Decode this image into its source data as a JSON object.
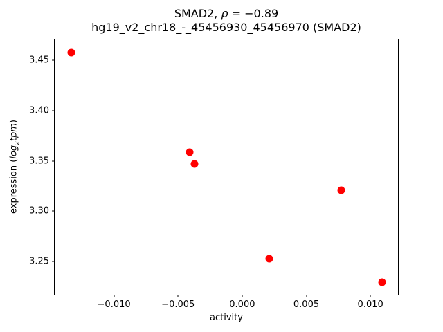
{
  "figure": {
    "title_line1": {
      "prefix": "SMAD2, ",
      "rho": "ρ",
      "rest": " = −0.89"
    },
    "title_line2": "hg19_v2_chr18_-_45456930_45456970 (SMAD2)",
    "xlabel": "activity",
    "ylabel": {
      "prefix": "expression (",
      "italic_main": "log",
      "italic_sub": "2",
      "italic_rest": "tpm",
      "suffix": ")"
    }
  },
  "chart_data": {
    "type": "scatter",
    "title": "SMAD2, ρ = −0.89",
    "subtitle": "hg19_v2_chr18_-_45456930_45456970 (SMAD2)",
    "xlabel": "activity",
    "ylabel": "expression (log2 tpm)",
    "marker_color": "#ff0000",
    "marker_size_px": 11,
    "grid": false,
    "legend": null,
    "xlim": [
      -0.01462,
      0.01215
    ],
    "ylim": [
      3.2169,
      3.471
    ],
    "xticks": [
      -0.01,
      -0.005,
      0.0,
      0.005,
      0.01
    ],
    "xtick_labels": [
      "−0.010",
      "−0.005",
      "0.000",
      "0.005",
      "0.010"
    ],
    "yticks": [
      3.25,
      3.3,
      3.35,
      3.4,
      3.45
    ],
    "ytick_labels": [
      "3.25",
      "3.30",
      "3.35",
      "3.40",
      "3.45"
    ],
    "points": [
      {
        "x": -0.0133,
        "y": 3.458
      },
      {
        "x": -0.0041,
        "y": 3.359
      },
      {
        "x": -0.0037,
        "y": 3.347
      },
      {
        "x": 0.0077,
        "y": 3.321
      },
      {
        "x": 0.0021,
        "y": 3.253
      },
      {
        "x": 0.0109,
        "y": 3.229
      }
    ]
  }
}
